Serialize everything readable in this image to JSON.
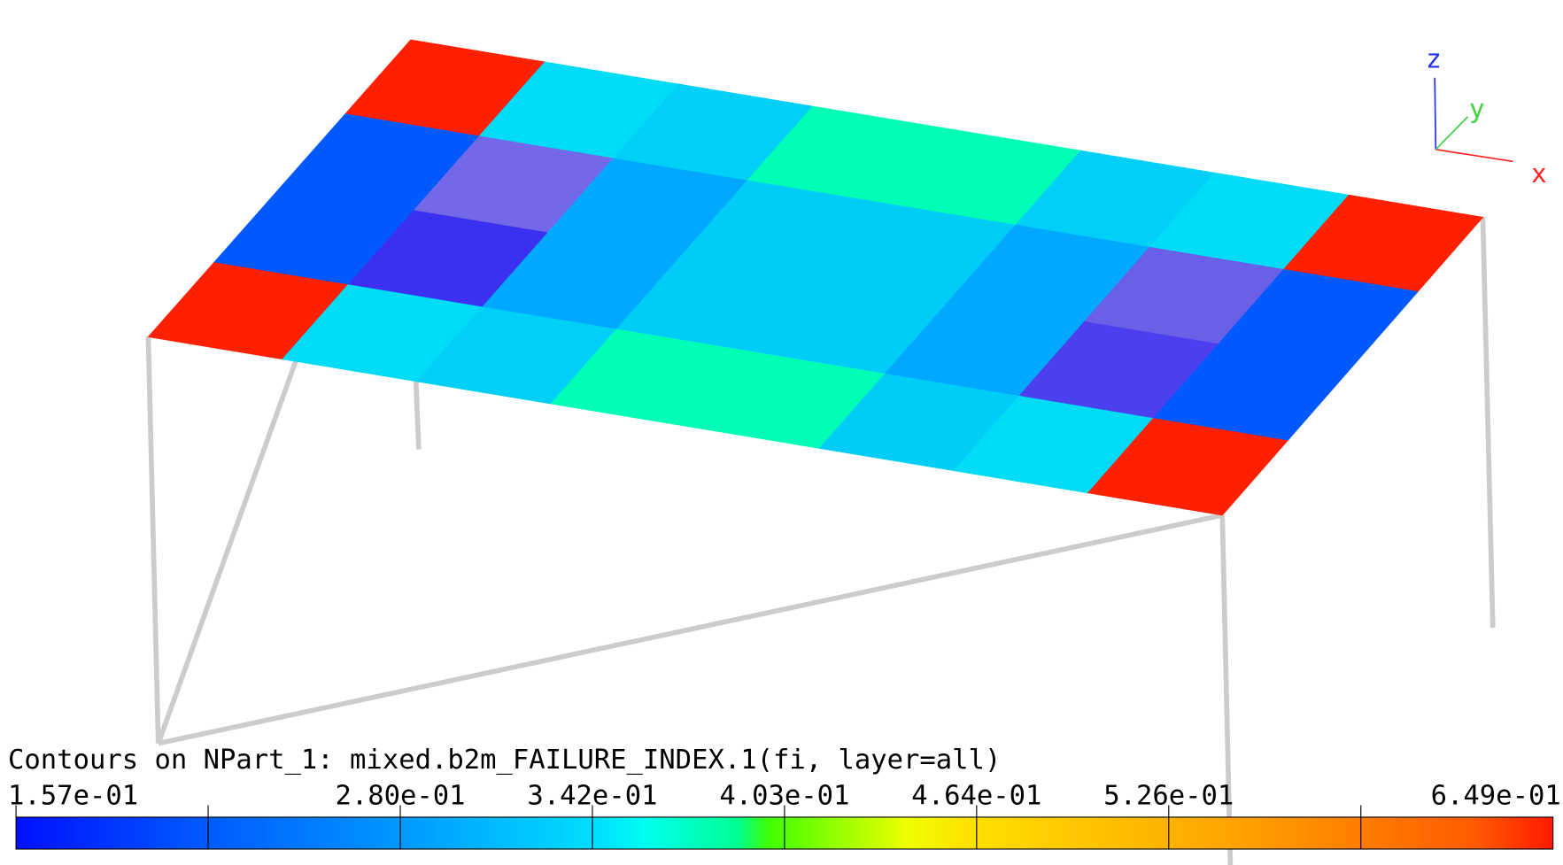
{
  "viewport": {
    "title": "Contours on NPart_1: mixed.b2m_FAILURE_INDEX.1(fi, layer=all)",
    "triad": {
      "x": "x",
      "y": "y",
      "z": "z"
    },
    "legend": {
      "labels": [
        "1.57e-01",
        "2.80e-01",
        "3.42e-01",
        "4.03e-01",
        "4.64e-01",
        "5.26e-01",
        "6.49e-01"
      ]
    }
  }
}
